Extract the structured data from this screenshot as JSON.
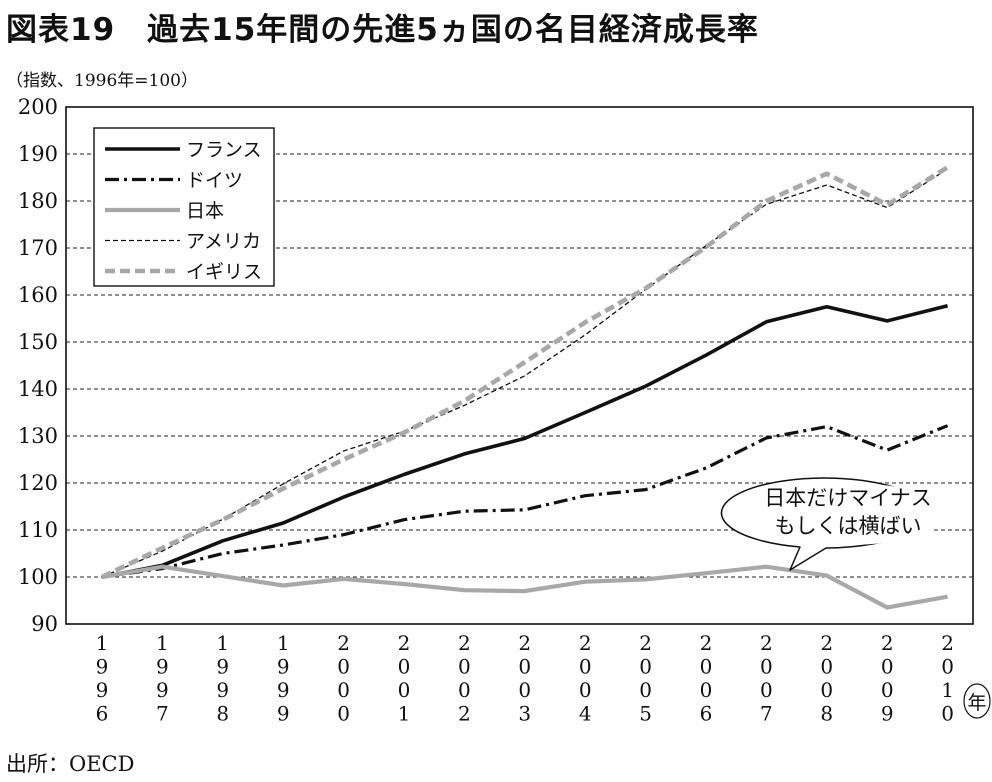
{
  "title": "図表19　過去15年間の先進5ヵ国の名目経済成長率",
  "subtitle": "（指数、1996年=100）",
  "source": "出所：OECD",
  "chart_data": {
    "type": "line",
    "ylim": [
      90,
      200
    ],
    "yticks": [
      90,
      100,
      110,
      120,
      130,
      140,
      150,
      160,
      170,
      180,
      190,
      200
    ],
    "x": [
      "1996",
      "1997",
      "1998",
      "1999",
      "2000",
      "2001",
      "2002",
      "2003",
      "2004",
      "2005",
      "2006",
      "2007",
      "2008",
      "2009",
      "2010"
    ],
    "xunit": "年",
    "grid": "horizontal-dashed",
    "legend_position": "top-left",
    "series": [
      {
        "name": "フランス",
        "color": "#111111",
        "style": "solid",
        "values": [
          100,
          102.5,
          107.7,
          111.5,
          117,
          121.8,
          126.2,
          129.5,
          135,
          140.6,
          147.2,
          154.3,
          157.5,
          154.5,
          157.7
        ]
      },
      {
        "name": "ドイツ",
        "color": "#111111",
        "style": "dashdot",
        "values": [
          100,
          101.8,
          105,
          106.8,
          109,
          112.2,
          114,
          114.3,
          117.3,
          118.6,
          123.2,
          129.6,
          132,
          127,
          132.2
        ]
      },
      {
        "name": "日本",
        "color": "#a8a8a8",
        "style": "solid-gray",
        "values": [
          100,
          102.2,
          100.2,
          98.2,
          99.6,
          98.5,
          97.2,
          97,
          99,
          99.5,
          100.8,
          102.2,
          100.3,
          93.5,
          95.8
        ]
      },
      {
        "name": "アメリカ",
        "color": "#111111",
        "style": "thin-dashed",
        "values": [
          100,
          105.5,
          112.3,
          119.8,
          126.8,
          131,
          136.5,
          142.8,
          151.5,
          161.2,
          170.5,
          179.3,
          183.4,
          178.6,
          186.8
        ]
      },
      {
        "name": "イギリス",
        "color": "#a8a8a8",
        "style": "dashed-gray",
        "values": [
          100,
          106.2,
          112.2,
          118.8,
          125,
          130.7,
          137.5,
          145.7,
          154.2,
          161.4,
          170.2,
          180,
          185.8,
          179.2,
          187.2
        ]
      }
    ],
    "annotation": {
      "lines": [
        "日本だけマイナス",
        "もしくは横ばい"
      ]
    }
  }
}
